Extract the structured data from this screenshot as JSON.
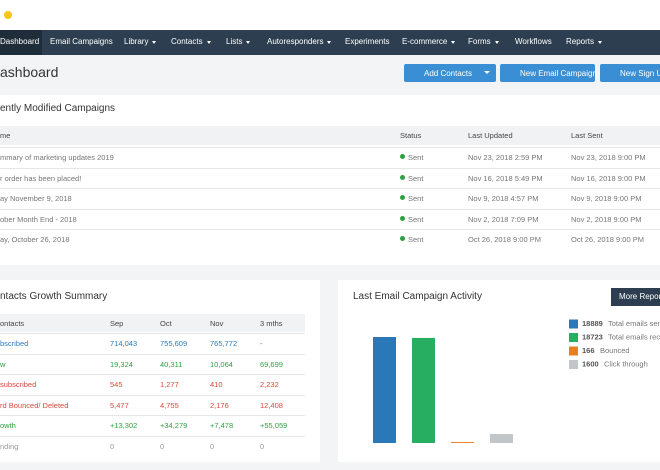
{
  "nav": [
    "Dashboard",
    "Email Campaigns",
    "Library",
    "Contacts",
    "Lists",
    "Autoresponders",
    "Experiments",
    "E-commerce",
    "Forms",
    "Workflows",
    "Reports"
  ],
  "header": {
    "title": "ashboard",
    "buttons": [
      "Add Contacts",
      "New Email Campaign",
      "New Sign Up"
    ]
  },
  "campaigns": {
    "title": "ently Modified Campaigns",
    "columns": [
      "me",
      "Status",
      "Last Updated",
      "Last Sent"
    ],
    "rows": [
      [
        "mmary of marketing updates 2019",
        "Sent",
        "Nov 23, 2018 2:59 PM",
        "Nov 23, 2018 9:00 PM"
      ],
      [
        "r order has been placed!",
        "Sent",
        "Nov 16, 2018 5:49 PM",
        "Nov 16, 2018 9:00 PM"
      ],
      [
        "ay November 9, 2018",
        "Sent",
        "Nov 9, 2018 4:57 PM",
        "Nov 9, 2018 9:00 PM"
      ],
      [
        "ober Month End - 2018",
        "Sent",
        "Nov 2, 2018 7:09 PM",
        "Nov 2, 2018 9:00 PM"
      ],
      [
        "ay, October 26, 2018",
        "Sent",
        "Oct 26, 2018 9:00 PM",
        "Oct 26, 2018 9:00 PM"
      ]
    ]
  },
  "growth": {
    "title": "ntacts Growth Summary",
    "columns": [
      "ontacts",
      "Sep",
      "Oct",
      "Nov",
      "3 mths"
    ],
    "rows": [
      [
        "bscribed",
        "714,043",
        "755,609",
        "765,772",
        "-"
      ],
      [
        "w",
        "19,324",
        "40,311",
        "10,064",
        "69,699"
      ],
      [
        "subscribed",
        "545",
        "1,277",
        "410",
        "2,232"
      ],
      [
        "rd Bounced/ Deleted",
        "5,477",
        "4,755",
        "2,176",
        "12,408"
      ],
      [
        "owth",
        "+13,302",
        "+34,279",
        "+7,478",
        "+55,059"
      ],
      [
        "nding",
        "0",
        "0",
        "0",
        "0"
      ]
    ],
    "row_colors": [
      "#2a7bbf",
      "#2ea043",
      "#d9483b",
      "#d9483b",
      "#2ea043",
      "#999999"
    ]
  },
  "activity": {
    "title": "Last Email Campaign Activity",
    "button": "More Report",
    "chart_data": {
      "type": "bar",
      "categories": [
        "Total emails sent",
        "Total emails rece",
        "Bounced",
        "Click through"
      ],
      "values": [
        18889,
        18723,
        166,
        1600
      ],
      "colors": [
        "#2a78b8",
        "#27ae60",
        "#e67e22",
        "#c2c6c8"
      ]
    }
  }
}
